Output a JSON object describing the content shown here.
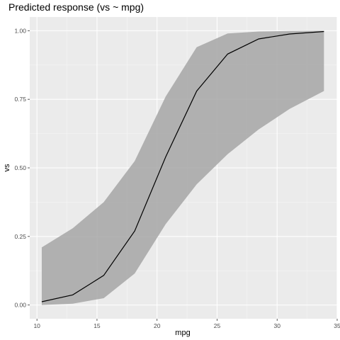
{
  "chart_data": {
    "type": "line",
    "title": "Predicted response (vs ~ mpg)",
    "xlabel": "mpg",
    "ylabel": "vs",
    "xlim": [
      9.4,
      35.0
    ],
    "ylim": [
      -0.05,
      1.05
    ],
    "x_ticks": [
      10,
      15,
      20,
      25,
      30,
      35
    ],
    "y_ticks": [
      0.0,
      0.25,
      0.5,
      0.75,
      1.0
    ],
    "x_tick_labels": [
      "10",
      "15",
      "20",
      "25",
      "30",
      "35"
    ],
    "y_tick_labels": [
      "0.00",
      "0.25",
      "0.50",
      "0.75",
      "1.00"
    ],
    "grid": true,
    "series": [
      {
        "x": [
          10.4,
          12.98,
          15.56,
          18.14,
          20.72,
          23.3,
          25.88,
          28.46,
          31.04,
          33.9
        ],
        "y": [
          0.012,
          0.037,
          0.108,
          0.27,
          0.54,
          0.78,
          0.915,
          0.97,
          0.988,
          0.997
        ],
        "lower": [
          0.0,
          0.005,
          0.025,
          0.115,
          0.295,
          0.44,
          0.55,
          0.64,
          0.715,
          0.78
        ],
        "upper": [
          0.21,
          0.28,
          0.375,
          0.525,
          0.76,
          0.94,
          0.99,
          0.997,
          0.999,
          1.0
        ]
      }
    ],
    "colors": {
      "panel": "#ebebeb",
      "grid_major": "#ffffff",
      "grid_minor": "#f5f5f5",
      "ribbon": "#a6a6a6",
      "line": "#000000",
      "tick": "#333333"
    }
  }
}
